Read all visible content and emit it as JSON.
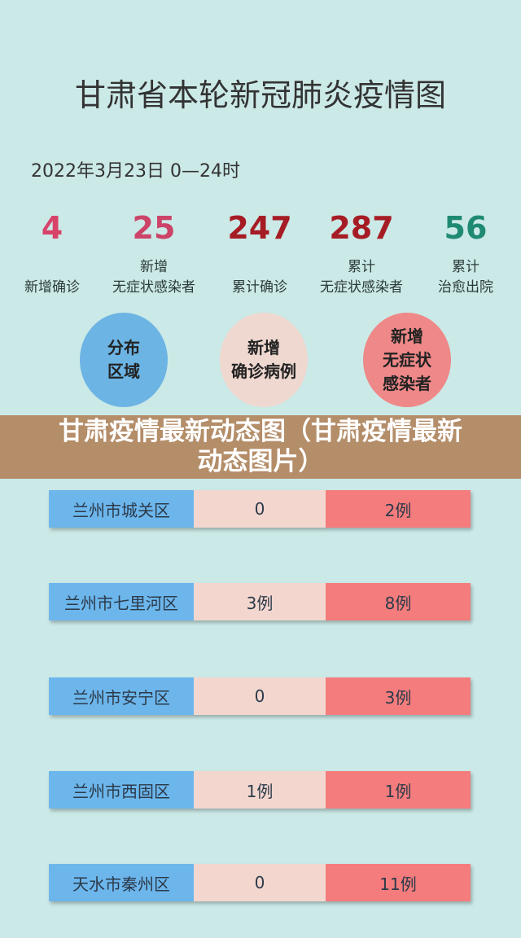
{
  "title": "甘肃省本轮新冠肺炎疫情图",
  "date": "2022年3月23日 0—24时",
  "stats": [
    {
      "value": "4",
      "label1": "",
      "label2": "新增确诊",
      "color": "#d8436a"
    },
    {
      "value": "25",
      "label1": "新增",
      "label2": "无症状感染者",
      "color": "#cc4468"
    },
    {
      "value": "247",
      "label1": "",
      "label2": "累计确诊",
      "color": "#a61c24"
    },
    {
      "value": "287",
      "label1": "累计",
      "label2": "无症状感染者",
      "color": "#a61c24"
    },
    {
      "value": "56",
      "label1": "累计",
      "label2": "治愈出院",
      "color": "#1f8a72"
    }
  ],
  "headers": [
    {
      "l1": "分布",
      "l2": "区域",
      "l3": "",
      "color": "#6cb4e4"
    },
    {
      "l1": "新增",
      "l2": "确诊病例",
      "l3": "",
      "color": "#efd8d0"
    },
    {
      "l1": "新增",
      "l2": "无症状",
      "l3": "感染者",
      "color": "#ef8888"
    }
  ],
  "rows": [
    {
      "area": "兰州市城关区",
      "confirmed": "0",
      "asymptomatic": "2例"
    },
    {
      "area": "兰州市七里河区",
      "confirmed": "3例",
      "asymptomatic": "8例"
    },
    {
      "area": "兰州市安宁区",
      "confirmed": "0",
      "asymptomatic": "3例"
    },
    {
      "area": "兰州市西固区",
      "confirmed": "1例",
      "asymptomatic": "1例"
    },
    {
      "area": "天水市秦州区",
      "confirmed": "0",
      "asymptomatic": "11例"
    }
  ],
  "banner": {
    "line1": "甘肃疫情最新动态图（甘肃疫情最新",
    "line2": "动态图片）"
  }
}
